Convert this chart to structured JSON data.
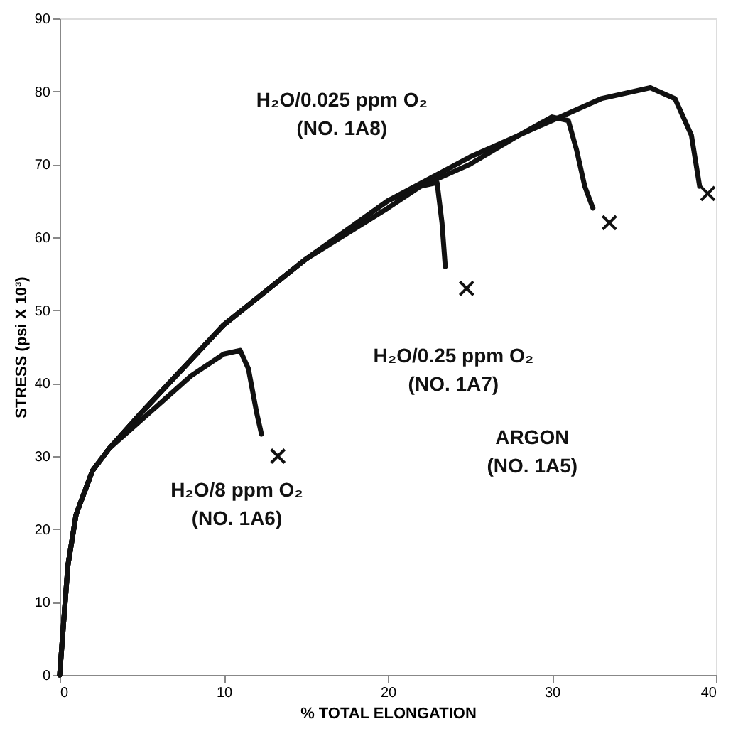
{
  "chart_data": {
    "type": "line",
    "xlabel": "% TOTAL ELONGATION",
    "ylabel": "STRESS (psi X 10³)",
    "xlim": [
      0,
      40
    ],
    "xticks": [
      0,
      10,
      20,
      30,
      40
    ],
    "ylim": [
      0,
      90
    ],
    "yticks": [
      0,
      10,
      20,
      30,
      40,
      50,
      60,
      70,
      80,
      90
    ],
    "grid": false,
    "line_style": "solid",
    "series": [
      {
        "type": "line",
        "color": "#111111",
        "x": [
          0,
          0.5,
          1,
          2,
          3,
          5,
          10,
          15,
          20,
          25,
          30,
          33,
          36,
          37.5,
          38.5,
          39
        ],
        "values": [
          0,
          15,
          22,
          28,
          31,
          36,
          48,
          57,
          65,
          71,
          76,
          79,
          80.5,
          79,
          74,
          67
        ]
      },
      {
        "type": "line",
        "color": "#111111",
        "x": [
          0,
          0.5,
          1,
          2,
          3,
          5,
          10,
          15,
          20,
          25,
          28,
          30,
          31,
          31.5,
          32,
          32.5
        ],
        "values": [
          0,
          15,
          22,
          28,
          31,
          36,
          48,
          57,
          65,
          70,
          74,
          76.5,
          76,
          72,
          67,
          64
        ]
      },
      {
        "type": "line",
        "color": "#111111",
        "x": [
          0,
          0.5,
          1,
          2,
          3,
          5,
          10,
          15,
          20,
          22,
          23,
          23.3,
          23.5
        ],
        "values": [
          0,
          15,
          22,
          28,
          31,
          36,
          48,
          57,
          64,
          67,
          67.5,
          62,
          56
        ]
      },
      {
        "type": "line",
        "color": "#111111",
        "x": [
          0,
          0.5,
          1,
          2,
          3,
          5,
          8,
          10,
          11,
          11.5,
          12,
          12.3
        ],
        "values": [
          0,
          15,
          22,
          28,
          31,
          35,
          41,
          44,
          44.5,
          42,
          36,
          33
        ]
      },
      {
        "type": "scatter",
        "marker": "cross",
        "color": "#111111",
        "x": [
          13.3,
          24.8,
          33.5,
          39.5
        ],
        "values": [
          30,
          53,
          62,
          66
        ]
      }
    ],
    "annotations": [
      "H₂O/0.025 ppm O₂\n(NO. 1A8)",
      "H₂O/0.25 ppm O₂\n(NO. 1A7)",
      "H₂O/8 ppm O₂\n(NO. 1A6)",
      "ARGON\n(NO. 1A5)"
    ]
  }
}
